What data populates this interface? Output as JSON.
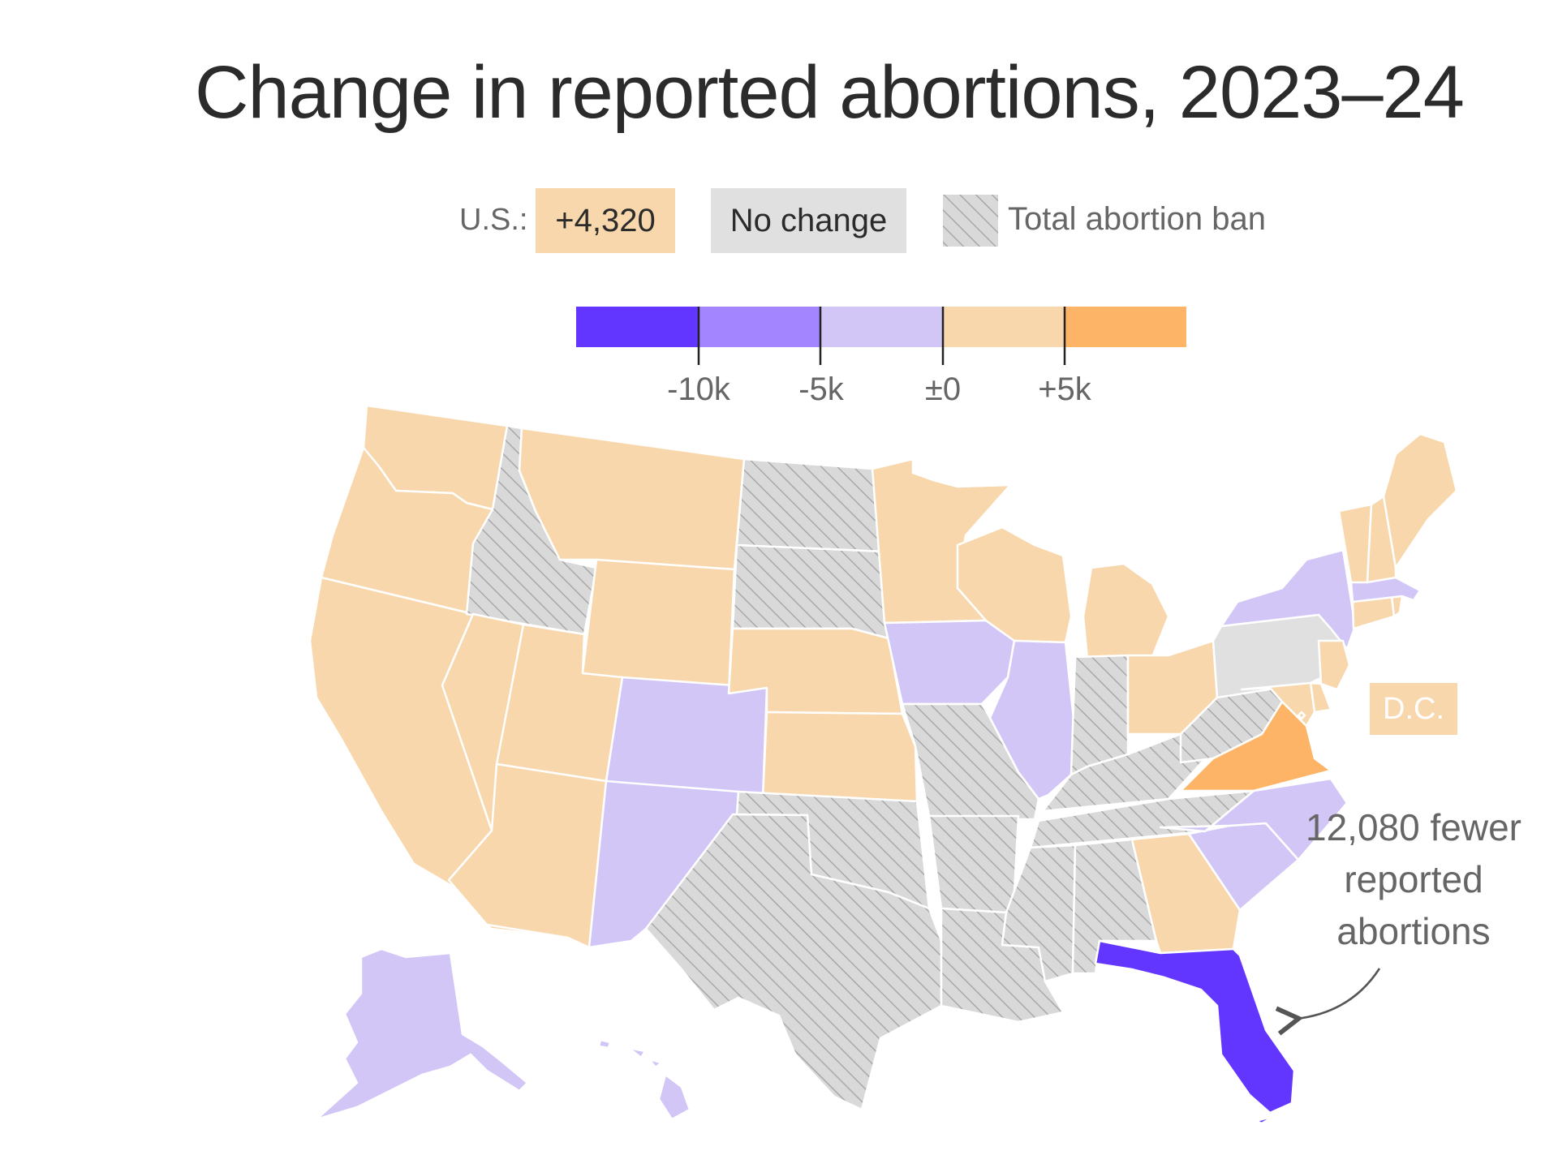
{
  "title": "Change in reported abortions, 2023–24",
  "legend": {
    "us_label": "U.S.:",
    "us_value": "+4,320",
    "no_change": "No change",
    "ban_label": "Total abortion ban"
  },
  "scale": {
    "tick_labels": [
      "-10k",
      "-5k",
      "±0",
      "+5k"
    ],
    "colors": [
      "#6236ff",
      "#a285ff",
      "#d2c6f7",
      "#f8d7ac",
      "#fdb466"
    ]
  },
  "colors": {
    "dark_purple": "#6236ff",
    "light_purple": "#d2c6f7",
    "light_orange": "#f8d7ac",
    "orange": "#fdb466",
    "no_change_gray": "#e0e0e0",
    "ban_gray": "#d9d9d9",
    "ban_hatch": "#a8a8a8"
  },
  "dc_label": "D.C.",
  "annotation": [
    "12,080 fewer",
    "reported",
    "abortions"
  ],
  "states": [
    {
      "name": "Washington",
      "category": "gain_small"
    },
    {
      "name": "Oregon",
      "category": "gain_small"
    },
    {
      "name": "California",
      "category": "gain_small"
    },
    {
      "name": "Idaho",
      "category": "ban"
    },
    {
      "name": "Nevada",
      "category": "gain_small"
    },
    {
      "name": "Montana",
      "category": "gain_small"
    },
    {
      "name": "Wyoming",
      "category": "gain_small"
    },
    {
      "name": "Utah",
      "category": "gain_small"
    },
    {
      "name": "Arizona",
      "category": "gain_small"
    },
    {
      "name": "Colorado",
      "category": "loss_small"
    },
    {
      "name": "New Mexico",
      "category": "loss_small"
    },
    {
      "name": "North Dakota",
      "category": "ban"
    },
    {
      "name": "South Dakota",
      "category": "ban"
    },
    {
      "name": "Nebraska",
      "category": "gain_small"
    },
    {
      "name": "Kansas",
      "category": "gain_small"
    },
    {
      "name": "Oklahoma",
      "category": "ban"
    },
    {
      "name": "Texas",
      "category": "ban"
    },
    {
      "name": "Minnesota",
      "category": "gain_small"
    },
    {
      "name": "Iowa",
      "category": "loss_small"
    },
    {
      "name": "Missouri",
      "category": "ban"
    },
    {
      "name": "Arkansas",
      "category": "ban"
    },
    {
      "name": "Louisiana",
      "category": "ban"
    },
    {
      "name": "Wisconsin",
      "category": "gain_small"
    },
    {
      "name": "Illinois",
      "category": "loss_small"
    },
    {
      "name": "Michigan",
      "category": "gain_small"
    },
    {
      "name": "Indiana",
      "category": "ban"
    },
    {
      "name": "Ohio",
      "category": "gain_small"
    },
    {
      "name": "Kentucky",
      "category": "ban"
    },
    {
      "name": "Tennessee",
      "category": "ban"
    },
    {
      "name": "Mississippi",
      "category": "ban"
    },
    {
      "name": "Alabama",
      "category": "ban"
    },
    {
      "name": "Georgia",
      "category": "gain_small"
    },
    {
      "name": "Florida",
      "category": "loss_large"
    },
    {
      "name": "South Carolina",
      "category": "loss_small"
    },
    {
      "name": "North Carolina",
      "category": "loss_small"
    },
    {
      "name": "Virginia",
      "category": "gain_large"
    },
    {
      "name": "West Virginia",
      "category": "ban"
    },
    {
      "name": "Pennsylvania",
      "category": "no_change"
    },
    {
      "name": "New York",
      "category": "loss_small"
    },
    {
      "name": "New Jersey",
      "category": "gain_small"
    },
    {
      "name": "Delaware",
      "category": "gain_small"
    },
    {
      "name": "Maryland",
      "category": "gain_small"
    },
    {
      "name": "Connecticut",
      "category": "gain_small"
    },
    {
      "name": "Rhode Island",
      "category": "gain_small"
    },
    {
      "name": "Massachusetts",
      "category": "loss_small"
    },
    {
      "name": "Vermont",
      "category": "gain_small"
    },
    {
      "name": "New Hampshire",
      "category": "gain_small"
    },
    {
      "name": "Maine",
      "category": "gain_small"
    },
    {
      "name": "Alaska",
      "category": "loss_small"
    },
    {
      "name": "Hawaii",
      "category": "loss_small"
    },
    {
      "name": "District of Columbia",
      "category": "gain_small"
    }
  ]
}
